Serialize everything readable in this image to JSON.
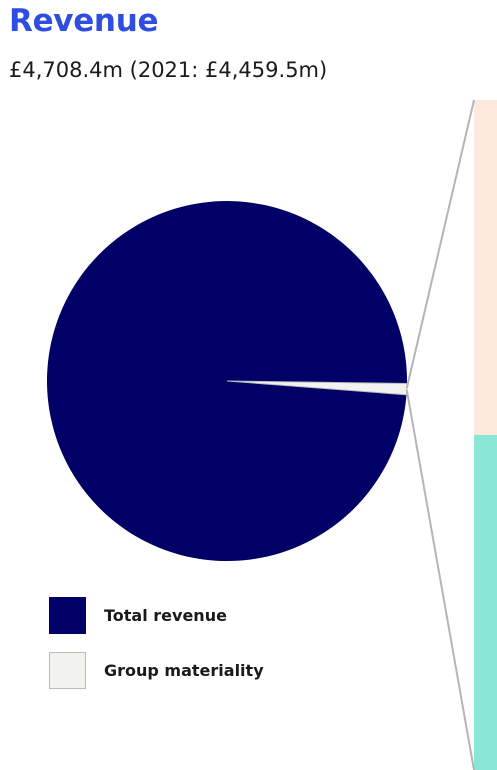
{
  "header": {
    "title": "Revenue",
    "subtitle": "£4,708.4m (2021: £4,459.5m)"
  },
  "colors": {
    "total_revenue": "#000066",
    "group_materiality": "#f2f2ee",
    "materiality_border": "#bbbbbb",
    "title": "#2f4de0",
    "panel_top": "#fde9dd",
    "panel_bottom": "#8ae6d5",
    "connector": "#b5b5b5"
  },
  "legend": {
    "items": [
      {
        "label": "Total revenue",
        "swatch": "total_revenue"
      },
      {
        "label": "Group materiality",
        "swatch": "group_materiality"
      }
    ]
  },
  "chart_data": {
    "type": "pie",
    "title": "Revenue",
    "subtitle": "£4,708.4m (2021: £4,459.5m)",
    "slices": [
      {
        "name": "Total revenue",
        "value": 99.0
      },
      {
        "name": "Group materiality",
        "value": 1.0
      }
    ],
    "legend_position": "bottom-left",
    "breakout": {
      "type": "stacked-bar",
      "segments": [
        {
          "value": 50.0,
          "color": "#fde9dd"
        },
        {
          "value": 50.0,
          "color": "#8ae6d5"
        }
      ]
    }
  }
}
